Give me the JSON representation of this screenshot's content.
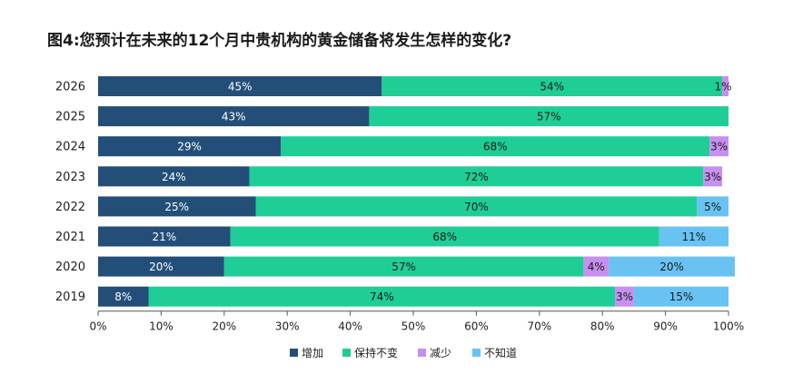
{
  "title": "图4:您预计在未来的12个月中贵机构的黄金储备将发生怎样的变化?",
  "chart_data": {
    "type": "bar",
    "orientation": "horizontal",
    "stacked": true,
    "categories": [
      "2026",
      "2025",
      "2024",
      "2023",
      "2022",
      "2021",
      "2020",
      "2019"
    ],
    "series": [
      {
        "name": "增加",
        "color": "#234e78",
        "values": [
          45,
          43,
          29,
          24,
          25,
          21,
          20,
          8
        ]
      },
      {
        "name": "保持不变",
        "color": "#1fce96",
        "values": [
          54,
          57,
          68,
          72,
          70,
          68,
          57,
          74
        ]
      },
      {
        "name": "减少",
        "color": "#c78ff0",
        "values": [
          1,
          0,
          3,
          3,
          0,
          0,
          4,
          3
        ]
      },
      {
        "name": "不知道",
        "color": "#68c3f2",
        "values": [
          0,
          0,
          0,
          0,
          5,
          11,
          20,
          15
        ]
      }
    ],
    "data_labels": [
      [
        "45%",
        "54%",
        "1%",
        ""
      ],
      [
        "43%",
        "57%",
        "",
        ""
      ],
      [
        "29%",
        "68%",
        "3%",
        ""
      ],
      [
        "24%",
        "72%",
        "3%",
        ""
      ],
      [
        "25%",
        "70%",
        "",
        "5%"
      ],
      [
        "21%",
        "68%",
        "",
        "11%"
      ],
      [
        "20%",
        "57%",
        "4%",
        "20%"
      ],
      [
        "8%",
        "74%",
        "3%",
        "15%"
      ]
    ],
    "label_colors": [
      "#ffffff",
      "#1a1a1a",
      "#1a1a1a",
      "#1a1a1a"
    ],
    "xlim": [
      0,
      100
    ],
    "xticks": [
      "0%",
      "10%",
      "20%",
      "30%",
      "40%",
      "50%",
      "60%",
      "70%",
      "80%",
      "90%",
      "100%"
    ],
    "legend_position": "bottom",
    "grid": false
  }
}
